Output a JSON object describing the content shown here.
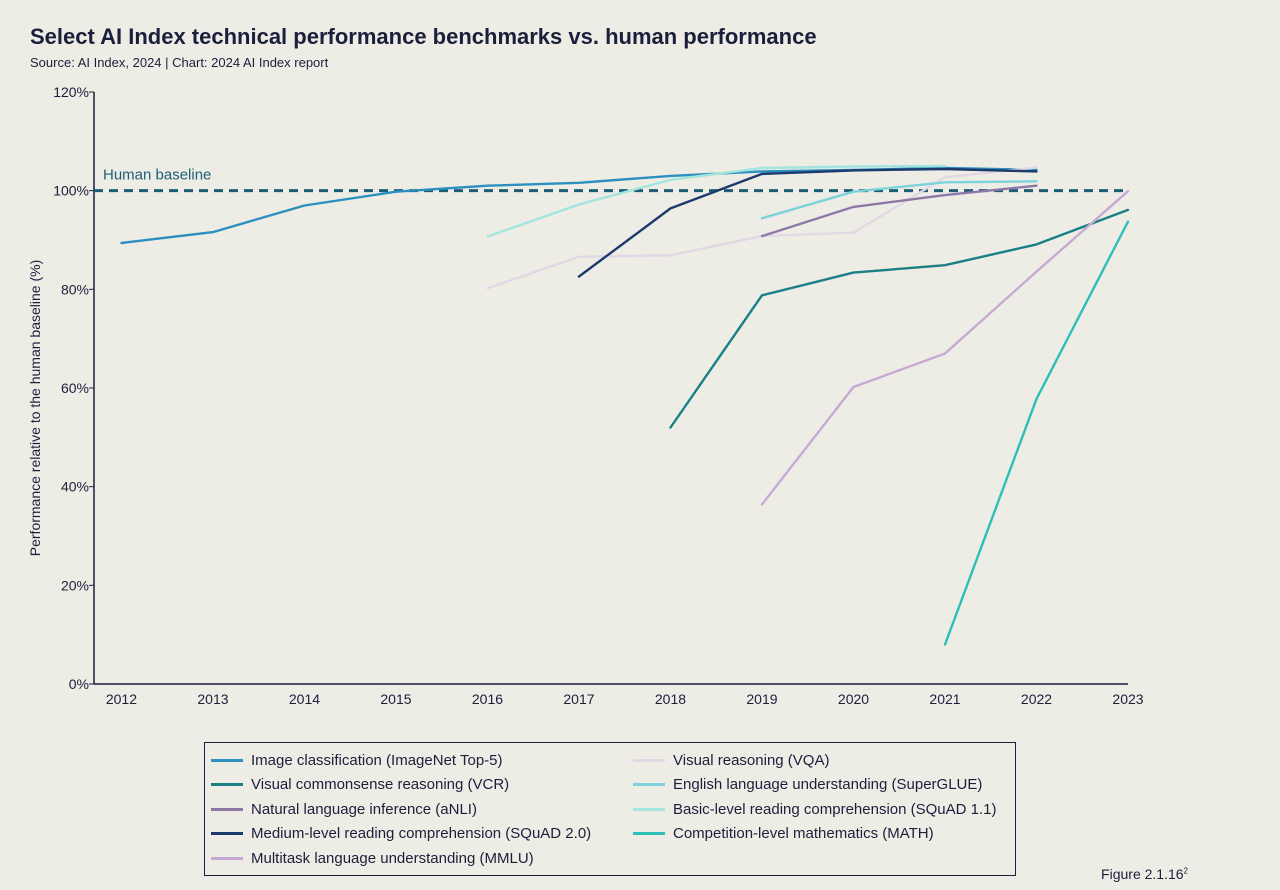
{
  "title": "Select AI Index technical performance benchmarks vs. human performance",
  "subtitle": "Source: AI Index, 2024 | Chart: 2024 AI Index report",
  "figure_label": "Figure 2.1.16",
  "figure_note_marker": "2",
  "colors": {
    "background": "#edede6",
    "text": "#1b1f3b",
    "baseline": "#1e5e74"
  },
  "chart_data": {
    "type": "line",
    "title": "Select AI Index technical performance benchmarks vs. human performance",
    "xlabel": "",
    "ylabel": "Performance relative to the human baseline (%)",
    "x_ticks": [
      "2012",
      "2013",
      "2014",
      "2015",
      "2016",
      "2017",
      "2018",
      "2019",
      "2020",
      "2021",
      "2022",
      "2023"
    ],
    "y_ticks": [
      "0%",
      "20%",
      "40%",
      "60%",
      "80%",
      "100%",
      "120%"
    ],
    "ylim": [
      0,
      120
    ],
    "xlim": [
      2011.7,
      2023
    ],
    "grid": false,
    "legend_position": "bottom",
    "baseline": {
      "label": "Human baseline",
      "value": 100
    },
    "series": [
      {
        "name": "Image classification (ImageNet Top-5)",
        "color": "#2b8fbf",
        "x": [
          2012,
          2013,
          2014,
          2015,
          2016,
          2017,
          2018,
          2019,
          2020,
          2021,
          2022
        ],
        "y": [
          89.4,
          91.6,
          97.0,
          99.8,
          101.0,
          101.6,
          103.0,
          103.9,
          104.2,
          104.6,
          104.2
        ]
      },
      {
        "name": "Visual reasoning (VQA)",
        "color": "#e2d7e4",
        "x": [
          2016,
          2017,
          2018,
          2019,
          2020,
          2021,
          2022
        ],
        "y": [
          80.2,
          86.6,
          86.9,
          90.8,
          91.5,
          102.7,
          104.7
        ]
      },
      {
        "name": "Visual commonsense reasoning (VCR)",
        "color": "#1b7f86",
        "x": [
          2018,
          2019,
          2020,
          2021,
          2022,
          2023
        ],
        "y": [
          52.0,
          78.8,
          83.4,
          84.9,
          89.1,
          96.1
        ]
      },
      {
        "name": "English language understanding (SuperGLUE)",
        "color": "#7dd3da",
        "x": [
          2019,
          2020,
          2021,
          2022
        ],
        "y": [
          94.4,
          99.8,
          101.7,
          101.9
        ]
      },
      {
        "name": "Natural language inference (aNLI)",
        "color": "#8f78a8",
        "x": [
          2019,
          2020,
          2021,
          2022
        ],
        "y": [
          90.8,
          96.7,
          99.1,
          101.0
        ]
      },
      {
        "name": "Basic-level reading comprehension (SQuAD 1.1)",
        "color": "#a3e4dd",
        "x": [
          2016,
          2017,
          2018,
          2019,
          2020,
          2021
        ],
        "y": [
          90.7,
          97.2,
          102.2,
          104.6,
          104.9,
          105.0
        ]
      },
      {
        "name": "Medium-level reading comprehension (SQuAD 2.0)",
        "color": "#1c3a6c",
        "x": [
          2017,
          2018,
          2019,
          2020,
          2021,
          2022
        ],
        "y": [
          82.6,
          96.4,
          103.4,
          104.1,
          104.4,
          103.9
        ]
      },
      {
        "name": "Competition-level mathematics (MATH)",
        "color": "#2fbfb8",
        "x": [
          2021,
          2022,
          2023
        ],
        "y": [
          8.0,
          57.8,
          93.7
        ]
      },
      {
        "name": "Multitask language understanding (MMLU)",
        "color": "#c7a9d3",
        "x": [
          2019,
          2020,
          2021,
          2022,
          2023
        ],
        "y": [
          36.4,
          60.2,
          67.0,
          83.6,
          99.9
        ]
      }
    ]
  },
  "legend_layout": [
    [
      0,
      2,
      4,
      6,
      8
    ],
    [
      1,
      3,
      5,
      7
    ]
  ]
}
